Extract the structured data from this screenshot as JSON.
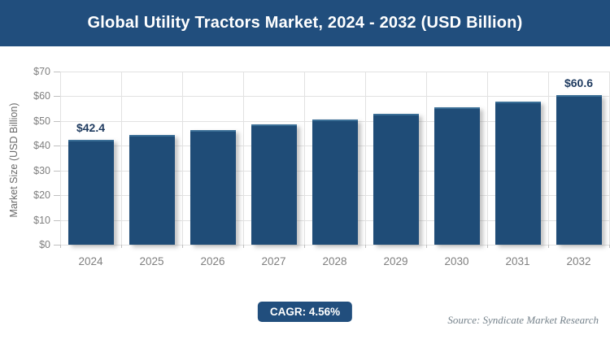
{
  "header": {
    "title": "Global Utility Tractors Market, 2024 - 2032 (USD Billion)"
  },
  "chart_data": {
    "type": "bar",
    "title": "Global Utility Tractors Market, 2024 - 2032 (USD Billion)",
    "categories": [
      "2024",
      "2025",
      "2026",
      "2027",
      "2028",
      "2029",
      "2030",
      "2031",
      "2032"
    ],
    "values": [
      42.4,
      44.3,
      46.4,
      48.5,
      50.7,
      53.0,
      55.4,
      57.9,
      60.6
    ],
    "value_labels": [
      "$42.4",
      "",
      "",
      "",
      "",
      "",
      "",
      "",
      "$60.6"
    ],
    "xlabel": "",
    "ylabel": "Market Size (USD Billion)",
    "ylim": [
      0,
      70
    ],
    "ytick_step": 10,
    "ytick_prefix": "$",
    "grid": true,
    "legend_position": "none",
    "bar_color": "#1F4C77"
  },
  "footer": {
    "cagr_label": "CAGR: 4.56%",
    "source": "Source: Syndicate Market Research"
  },
  "colors": {
    "banner": "#214E7D",
    "badge": "#214E7D",
    "bar": "#1F4C77",
    "bar_edge": "#3A6E96",
    "grid": "#E2E2E2",
    "tick": "#C0C0C0",
    "axis_text": "#7F7F7F",
    "axis_title_text": "#6B6B6B",
    "value_label": "#1E3A5F",
    "source_text": "#75828B"
  }
}
